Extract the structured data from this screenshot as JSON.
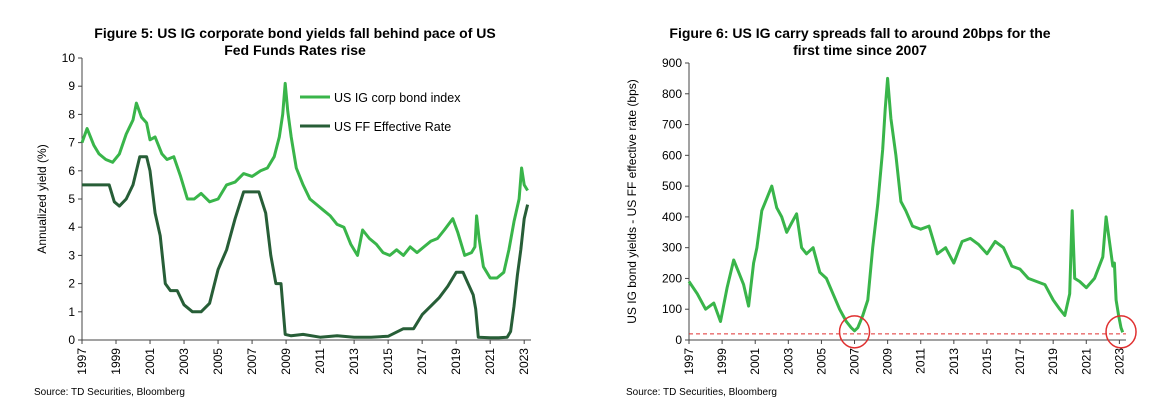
{
  "chart_data": [
    {
      "type": "line",
      "title": "Figure 5: US IG corporate bond yields fall behind pace of US Fed Funds Rates rise",
      "ylabel": "Annualized yield (%)",
      "xlabel": "",
      "xlim": [
        1997,
        2023.4
      ],
      "ylim": [
        0,
        10
      ],
      "x_ticks": [
        "1997",
        "1999",
        "2001",
        "2003",
        "2005",
        "2007",
        "2009",
        "2011",
        "2013",
        "2015",
        "2017",
        "2019",
        "2021",
        "2023"
      ],
      "y_ticks": [
        "0",
        "1",
        "2",
        "3",
        "4",
        "5",
        "6",
        "7",
        "8",
        "9",
        "10"
      ],
      "grid": false,
      "legend": "top-right",
      "series": [
        {
          "name": "US IG corp bond index",
          "color": "#39b54a",
          "x": [
            1997.0,
            1997.3,
            1997.7,
            1998.0,
            1998.4,
            1998.8,
            1999.2,
            1999.6,
            2000.0,
            2000.2,
            2000.5,
            2000.8,
            2001.0,
            2001.3,
            2001.7,
            2002.0,
            2002.4,
            2002.8,
            2003.2,
            2003.6,
            2004.0,
            2004.5,
            2005.0,
            2005.5,
            2006.0,
            2006.5,
            2007.0,
            2007.5,
            2007.9,
            2008.3,
            2008.6,
            2008.8,
            2008.95,
            2009.1,
            2009.3,
            2009.6,
            2010.0,
            2010.4,
            2010.8,
            2011.2,
            2011.6,
            2012.0,
            2012.4,
            2012.8,
            2013.2,
            2013.5,
            2013.9,
            2014.3,
            2014.7,
            2015.1,
            2015.5,
            2015.9,
            2016.3,
            2016.7,
            2017.1,
            2017.5,
            2017.9,
            2018.3,
            2018.8,
            2019.1,
            2019.5,
            2019.9,
            2020.1,
            2020.2,
            2020.35,
            2020.6,
            2021.0,
            2021.4,
            2021.8,
            2022.1,
            2022.4,
            2022.7,
            2022.85,
            2023.0,
            2023.2
          ],
          "values": [
            7.0,
            7.5,
            6.9,
            6.6,
            6.4,
            6.3,
            6.6,
            7.3,
            7.8,
            8.4,
            7.9,
            7.7,
            7.1,
            7.2,
            6.6,
            6.4,
            6.5,
            5.8,
            5.0,
            5.0,
            5.2,
            4.9,
            5.0,
            5.5,
            5.6,
            5.9,
            5.8,
            6.0,
            6.1,
            6.5,
            7.2,
            8.0,
            9.1,
            8.1,
            7.2,
            6.1,
            5.5,
            5.0,
            4.8,
            4.6,
            4.4,
            4.1,
            4.0,
            3.4,
            3.0,
            3.9,
            3.6,
            3.4,
            3.1,
            3.0,
            3.2,
            3.0,
            3.3,
            3.1,
            3.3,
            3.5,
            3.6,
            3.9,
            4.3,
            3.8,
            3.0,
            3.1,
            3.3,
            4.4,
            3.6,
            2.6,
            2.2,
            2.2,
            2.4,
            3.2,
            4.2,
            5.0,
            6.1,
            5.5,
            5.3
          ]
        },
        {
          "name": "US FF Effective Rate",
          "color": "#275e37",
          "x": [
            1997.0,
            1997.5,
            1998.0,
            1998.6,
            1998.9,
            1999.2,
            1999.6,
            2000.0,
            2000.4,
            2000.8,
            2001.0,
            2001.3,
            2001.6,
            2001.9,
            2002.2,
            2002.6,
            2003.0,
            2003.5,
            2004.0,
            2004.5,
            2005.0,
            2005.5,
            2006.0,
            2006.5,
            2007.0,
            2007.4,
            2007.8,
            2008.1,
            2008.4,
            2008.7,
            2008.95,
            2009.3,
            2010.0,
            2011.0,
            2012.0,
            2013.0,
            2014.0,
            2015.0,
            2015.9,
            2016.5,
            2017.0,
            2017.5,
            2018.0,
            2018.5,
            2019.0,
            2019.4,
            2019.7,
            2020.0,
            2020.15,
            2020.3,
            2021.0,
            2021.5,
            2022.0,
            2022.2,
            2022.4,
            2022.6,
            2022.8,
            2023.0,
            2023.2
          ],
          "values": [
            5.5,
            5.5,
            5.5,
            5.5,
            4.9,
            4.75,
            5.0,
            5.5,
            6.5,
            6.5,
            6.0,
            4.5,
            3.7,
            2.0,
            1.75,
            1.75,
            1.25,
            1.0,
            1.0,
            1.3,
            2.5,
            3.2,
            4.3,
            5.25,
            5.25,
            5.25,
            4.5,
            3.0,
            2.0,
            2.0,
            0.2,
            0.15,
            0.2,
            0.1,
            0.15,
            0.1,
            0.1,
            0.13,
            0.4,
            0.4,
            0.9,
            1.2,
            1.5,
            1.9,
            2.4,
            2.4,
            2.0,
            1.6,
            1.1,
            0.1,
            0.08,
            0.08,
            0.1,
            0.3,
            1.2,
            2.3,
            3.2,
            4.3,
            4.8
          ]
        }
      ]
    },
    {
      "type": "line",
      "title": "Figure 6: US IG carry spreads fall to around 20bps for the first time since 2007",
      "ylabel": "US IG bond yields - US FF effective rate (bps)",
      "xlabel": "",
      "xlim": [
        1997,
        2023.4
      ],
      "ylim": [
        0,
        900
      ],
      "x_ticks": [
        "1997",
        "1999",
        "2001",
        "2003",
        "2005",
        "2007",
        "2009",
        "2011",
        "2013",
        "2015",
        "2017",
        "2019",
        "2021",
        "2023"
      ],
      "y_ticks": [
        "0",
        "100",
        "200",
        "300",
        "400",
        "500",
        "600",
        "700",
        "800",
        "900"
      ],
      "grid": false,
      "reference_line": 20,
      "highlight_circles_x": [
        2007.0,
        2023.1
      ],
      "series": [
        {
          "color": "#39b54a",
          "x": [
            1997.0,
            1997.5,
            1998.0,
            1998.5,
            1998.9,
            1999.3,
            1999.7,
            2000.0,
            2000.3,
            2000.6,
            2000.9,
            2001.1,
            2001.4,
            2001.7,
            2002.0,
            2002.3,
            2002.6,
            2002.9,
            2003.2,
            2003.5,
            2003.8,
            2004.1,
            2004.5,
            2004.9,
            2005.3,
            2005.7,
            2006.1,
            2006.5,
            2006.8,
            2007.0,
            2007.2,
            2007.5,
            2007.8,
            2008.1,
            2008.4,
            2008.7,
            2008.85,
            2009.0,
            2009.2,
            2009.5,
            2009.8,
            2010.1,
            2010.5,
            2011.0,
            2011.5,
            2012.0,
            2012.5,
            2013.0,
            2013.5,
            2014.0,
            2014.5,
            2015.0,
            2015.5,
            2016.0,
            2016.5,
            2017.0,
            2017.5,
            2018.0,
            2018.5,
            2019.0,
            2019.4,
            2019.7,
            2020.0,
            2020.15,
            2020.3,
            2020.6,
            2021.0,
            2021.5,
            2022.0,
            2022.2,
            2022.45,
            2022.6,
            2022.7,
            2022.8,
            2022.95,
            2023.1,
            2023.2
          ],
          "values": [
            190,
            150,
            100,
            120,
            60,
            170,
            260,
            220,
            180,
            110,
            250,
            300,
            420,
            460,
            500,
            430,
            400,
            350,
            380,
            410,
            300,
            280,
            300,
            220,
            200,
            150,
            100,
            60,
            40,
            30,
            40,
            80,
            130,
            300,
            440,
            620,
            750,
            850,
            720,
            600,
            450,
            420,
            370,
            360,
            370,
            280,
            300,
            250,
            320,
            330,
            310,
            280,
            320,
            300,
            240,
            230,
            200,
            190,
            180,
            130,
            100,
            80,
            150,
            420,
            200,
            190,
            170,
            200,
            270,
            400,
            300,
            240,
            250,
            130,
            80,
            40,
            25
          ]
        }
      ]
    }
  ],
  "source_left": "Source: TD Securities, Bloomberg",
  "source_right": "Source: TD Securities, Bloomberg"
}
